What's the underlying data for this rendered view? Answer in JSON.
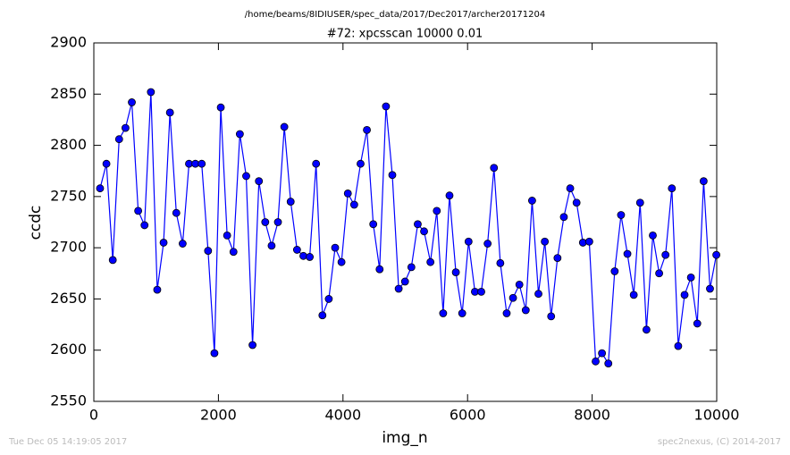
{
  "header": {
    "path": "/home/beams/8IDIUSER/spec_data/2017/Dec2017/archer20171204"
  },
  "footer": {
    "timestamp": "Tue Dec 05 14:19:05 2017",
    "credit": "spec2nexus, (C) 2014-2017"
  },
  "chart_data": {
    "type": "line",
    "title": "#72: xpcsscan 10000 0.01",
    "x_label": "img_n",
    "y_label": "ccdc",
    "xlim": [
      0,
      10000
    ],
    "xticks": [
      0,
      2000,
      4000,
      6000,
      8000,
      10000
    ],
    "ylim": [
      2550,
      2900
    ],
    "yticks": [
      2550,
      2600,
      2650,
      2700,
      2750,
      2800,
      2850,
      2900
    ],
    "grid": false,
    "x": [
      100,
      202,
      304,
      406,
      508,
      610,
      712,
      814,
      916,
      1018,
      1120,
      1222,
      1324,
      1426,
      1528,
      1630,
      1732,
      1834,
      1936,
      2038,
      2140,
      2242,
      2344,
      2446,
      2548,
      2650,
      2752,
      2854,
      2956,
      3058,
      3160,
      3262,
      3364,
      3466,
      3568,
      3670,
      3772,
      3874,
      3976,
      4078,
      4180,
      4282,
      4384,
      4486,
      4588,
      4690,
      4792,
      4894,
      4996,
      5098,
      5200,
      5302,
      5404,
      5506,
      5608,
      5710,
      5812,
      5914,
      6016,
      6118,
      6220,
      6322,
      6424,
      6526,
      6628,
      6730,
      6832,
      6934,
      7036,
      7138,
      7240,
      7342,
      7444,
      7546,
      7648,
      7750,
      7852,
      7954,
      8056,
      8158,
      8260,
      8362,
      8464,
      8566,
      8668,
      8770,
      8872,
      8974,
      9076,
      9178,
      9280,
      9382,
      9484,
      9586,
      9688,
      9790,
      9892,
      9994
    ],
    "series": [
      {
        "name": "ccdc",
        "color": "#0000ff",
        "values": [
          2758,
          2782,
          2688,
          2806,
          2817,
          2842,
          2736,
          2722,
          2852,
          2659,
          2705,
          2832,
          2734,
          2704,
          2782,
          2782,
          2782,
          2697,
          2597,
          2837,
          2712,
          2696,
          2811,
          2770,
          2605,
          2765,
          2725,
          2702,
          2725,
          2818,
          2745,
          2698,
          2692,
          2691,
          2782,
          2634,
          2650,
          2700,
          2686,
          2753,
          2742,
          2782,
          2815,
          2723,
          2679,
          2838,
          2771,
          2660,
          2667,
          2681,
          2723,
          2716,
          2686,
          2736,
          2636,
          2751,
          2676,
          2636,
          2706,
          2657,
          2657,
          2704,
          2778,
          2685,
          2636,
          2651,
          2664,
          2639,
          2746,
          2655,
          2706,
          2633,
          2690,
          2730,
          2758,
          2744,
          2705,
          2706,
          2589,
          2597,
          2587,
          2677,
          2732,
          2694,
          2654,
          2744,
          2620,
          2712,
          2675,
          2693,
          2758,
          2604,
          2654,
          2671,
          2626,
          2765,
          2660,
          2693
        ]
      }
    ]
  }
}
